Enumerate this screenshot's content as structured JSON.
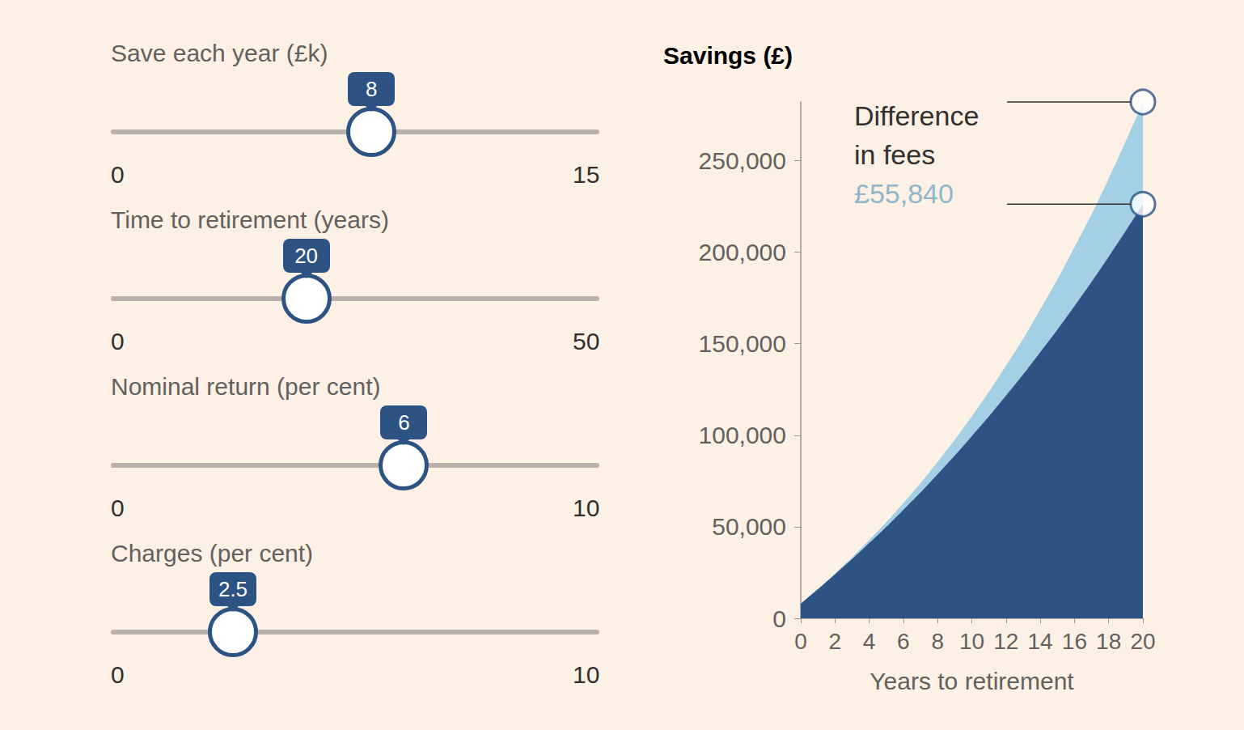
{
  "controls": [
    {
      "label": "Save each year (£k)",
      "value": 8,
      "min": 0,
      "max": 15
    },
    {
      "label": "Time to retirement (years)",
      "value": 20,
      "min": 0,
      "max": 50
    },
    {
      "label": "Nominal return (per cent)",
      "value": 6,
      "min": 0,
      "max": 10
    },
    {
      "label": "Charges (per cent)",
      "value": 2.5,
      "min": 0,
      "max": 10
    }
  ],
  "chart_data": {
    "type": "area",
    "title": "Savings (£)",
    "x_label": "Years to retirement",
    "x": [
      0,
      2,
      4,
      6,
      8,
      10,
      12,
      14,
      16,
      18,
      20
    ],
    "series": [
      {
        "color": "#a3d0e4",
        "values": [
          8000,
          24480,
          42750,
          63020,
          85480,
          110390,
          138000,
          168670,
          202660,
          240150,
          282064
        ]
      },
      {
        "color": "#2d5284",
        "values": [
          8000,
          23990,
          41070,
          59290,
          78740,
          99500,
          121660,
          145300,
          170540,
          197490,
          226224
        ]
      }
    ],
    "xlim": [
      0,
      20
    ],
    "xticks": [
      0,
      2,
      4,
      6,
      8,
      10,
      12,
      14,
      16,
      18,
      20
    ],
    "ylim": [
      0,
      282064
    ],
    "yticks": [
      0,
      {
        "value": 50000,
        "label": "50,000"
      },
      {
        "value": 100000,
        "label": "100,000"
      },
      {
        "value": 150000,
        "label": "150,000"
      },
      {
        "value": 200000,
        "label": "200,000"
      },
      {
        "value": 250000,
        "label": "250,000"
      }
    ],
    "grid": false,
    "annotation": {
      "lines": [
        "Difference",
        "in fees"
      ],
      "values": [
        55840
      ],
      "value_labels": [
        "£55,840"
      ],
      "color": "#8fb6cb"
    }
  }
}
